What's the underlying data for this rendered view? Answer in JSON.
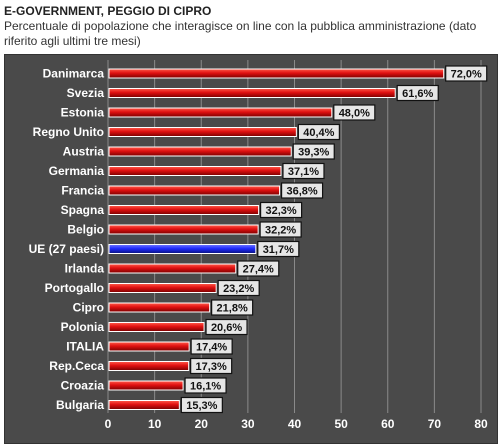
{
  "title": "E-GOVERNMENT, PEGGIO DI CIPRO",
  "subtitle": "Percentuale di popolazione che interagisce on line con la pubblica amministrazione (dato riferito agli ultimi tre mesi)",
  "chart_data": {
    "type": "bar",
    "orientation": "horizontal",
    "title": "E-GOVERNMENT, PEGGIO DI CIPRO",
    "subtitle": "Percentuale di popolazione che interagisce on line con la pubblica amministrazione (dato riferito agli ultimi tre mesi)",
    "categories": [
      "Danimarca",
      "Svezia",
      "Estonia",
      "Regno Unito",
      "Austria",
      "Germania",
      "Francia",
      "Spagna",
      "Belgio",
      "UE (27 paesi)",
      "Irlanda",
      "Portogallo",
      "Cipro",
      "Polonia",
      "ITALIA",
      "Rep.Ceca",
      "Croazia",
      "Bulgaria"
    ],
    "values": [
      72.0,
      61.6,
      48.0,
      40.4,
      39.3,
      37.1,
      36.8,
      32.3,
      32.2,
      31.7,
      27.4,
      23.2,
      21.8,
      20.6,
      17.4,
      17.3,
      16.1,
      15.3
    ],
    "value_labels": [
      "72,0%",
      "61,6%",
      "48,0%",
      "40,4%",
      "39,3%",
      "37,1%",
      "36,8%",
      "32,3%",
      "32,2%",
      "31,7%",
      "27,4%",
      "23,2%",
      "21,8%",
      "20,6%",
      "17,4%",
      "17,3%",
      "16,1%",
      "15,3%"
    ],
    "highlight_category": "UE (27 paesi)",
    "xlim": [
      0,
      80
    ],
    "xticks": [
      "0",
      "10",
      "20",
      "30",
      "40",
      "50",
      "60",
      "70",
      "80"
    ],
    "grid": "vertical",
    "colors": {
      "bar": "#e01010",
      "bar_dark": "#7a0000",
      "highlight": "#1f2bff",
      "panel": "#4a4a4a",
      "gridline": "#8a8a8a",
      "label_box": "#e6e6e6"
    }
  }
}
